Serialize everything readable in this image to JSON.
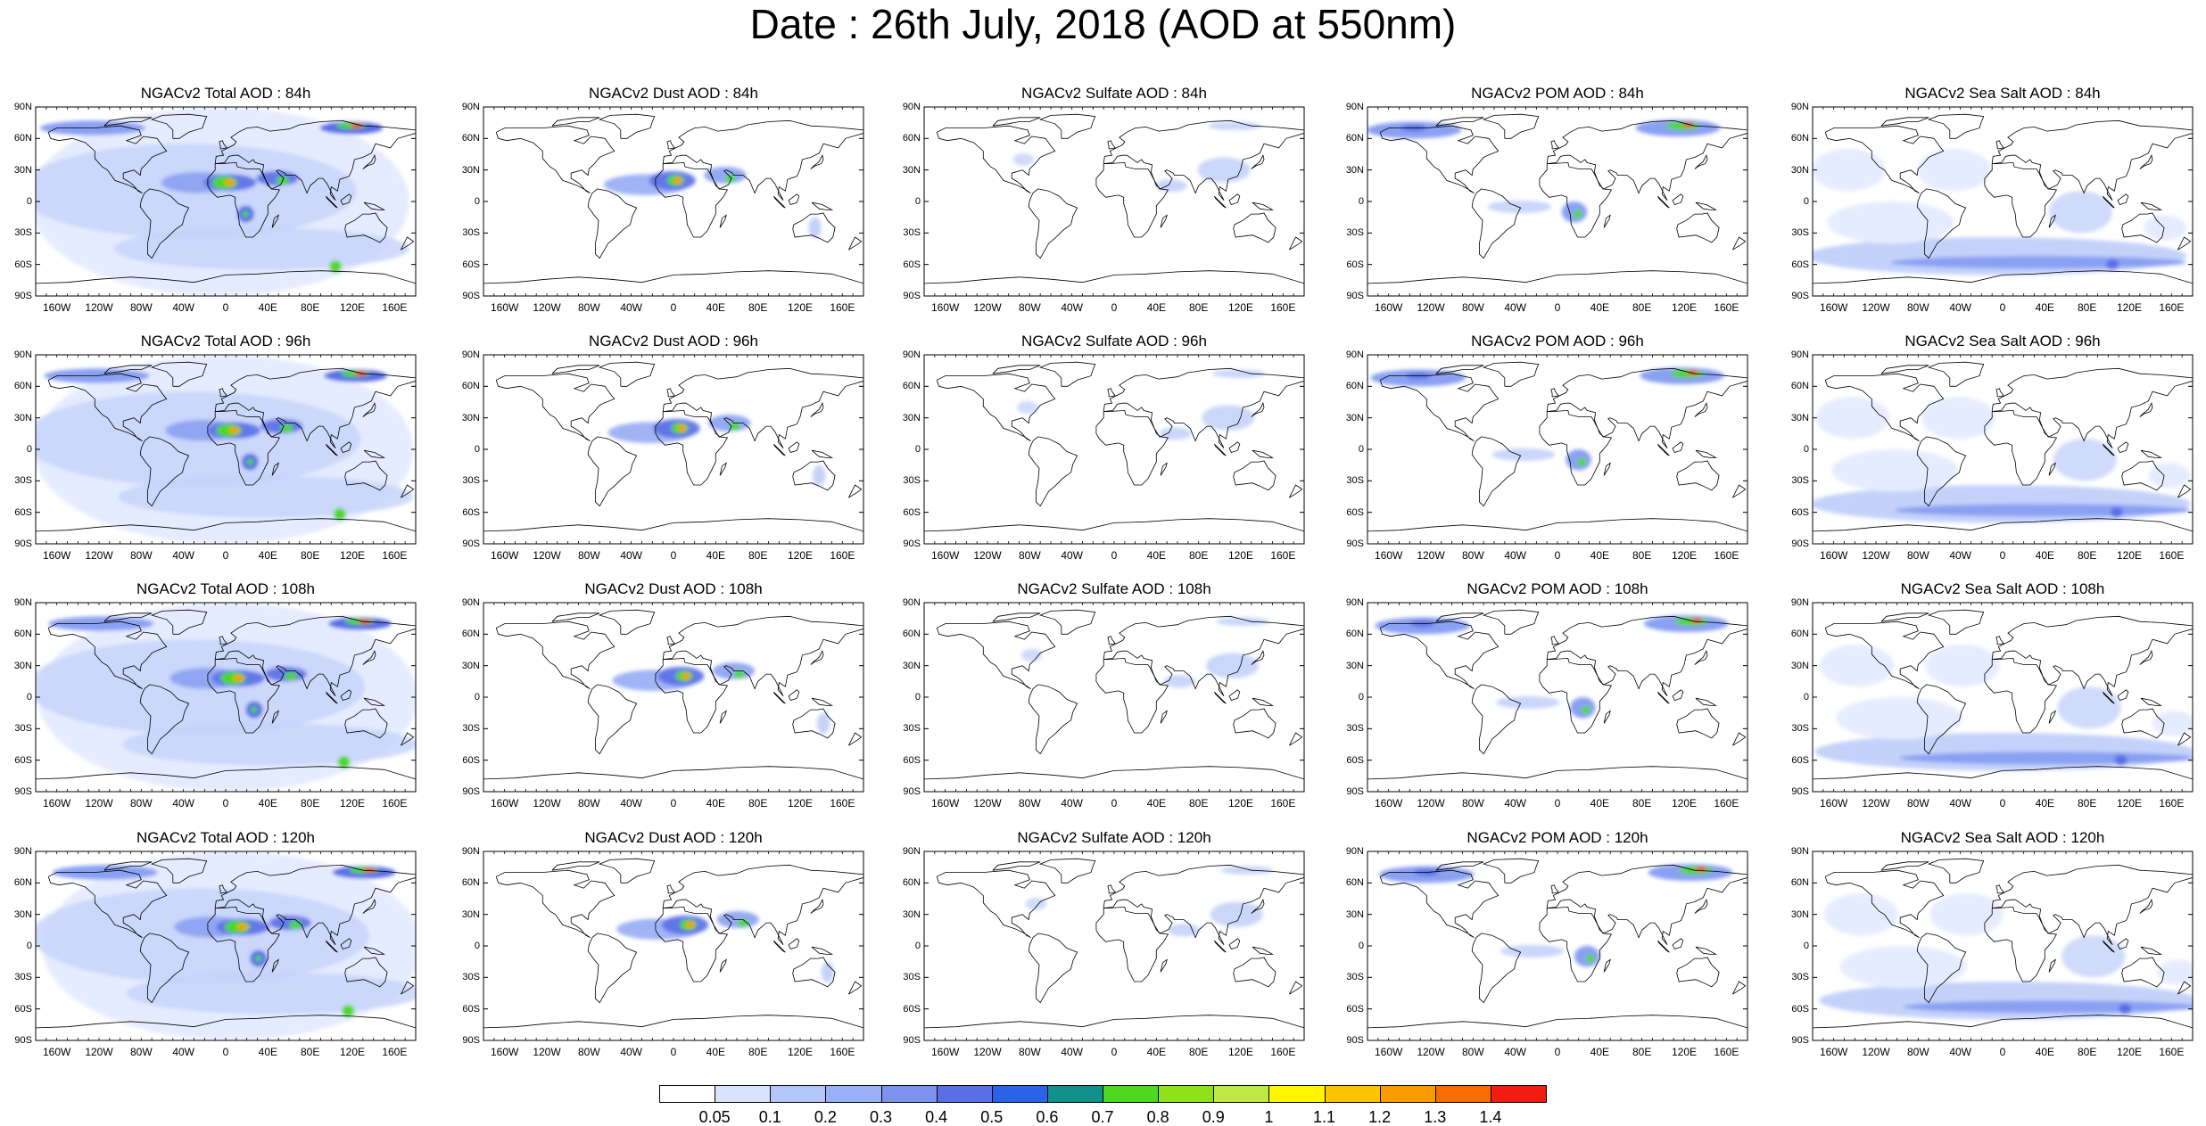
{
  "title": "Date : 26th July, 2018 (AOD at 550nm)",
  "panel_titles": [
    [
      "NGACv2 Total AOD : 84h",
      "NGACv2 Dust AOD : 84h",
      "NGACv2 Sulfate AOD : 84h",
      "NGACv2 POM AOD : 84h",
      "NGACv2 Sea Salt AOD : 84h"
    ],
    [
      "NGACv2 Total AOD : 96h",
      "NGACv2 Dust AOD : 96h",
      "NGACv2 Sulfate AOD : 96h",
      "NGACv2 POM AOD : 96h",
      "NGACv2 Sea Salt AOD : 96h"
    ],
    [
      "NGACv2 Total AOD : 108h",
      "NGACv2 Dust AOD : 108h",
      "NGACv2 Sulfate AOD : 108h",
      "NGACv2 POM AOD : 108h",
      "NGACv2 Sea Salt AOD : 108h"
    ],
    [
      "NGACv2 Total AOD : 120h",
      "NGACv2 Dust AOD : 120h",
      "NGACv2 Sulfate AOD : 120h",
      "NGACv2 POM AOD : 120h",
      "NGACv2 Sea Salt  AOD : 120h"
    ]
  ],
  "lat_labels": [
    "90N",
    "60N",
    "30N",
    "0",
    "30S",
    "60S",
    "90S"
  ],
  "lon_labels": [
    "160W",
    "120W",
    "80W",
    "40W",
    "0",
    "40E",
    "80E",
    "120E",
    "160E"
  ],
  "colorbar": {
    "labels": [
      "0.05",
      "0.1",
      "0.2",
      "0.3",
      "0.4",
      "0.5",
      "0.6",
      "0.7",
      "0.8",
      "0.9",
      "1",
      "1.1",
      "1.2",
      "1.3",
      "1.4"
    ],
    "colors": [
      "#ffffff",
      "#d7e3ff",
      "#b3c6fb",
      "#98b0f7",
      "#7d93ef",
      "#5a6ee6",
      "#2a62e8",
      "#11908c",
      "#4ed822",
      "#8fe11b",
      "#bee945",
      "#fff600",
      "#fbc300",
      "#f89b00",
      "#f66c00",
      "#f11c12"
    ]
  },
  "colors": {
    "ocean_low": "#e6ecff",
    "ocean_mid": "#c4d2fa",
    "aerosol_mid": "#8aa0f2",
    "aerosol_high": "#5a6ee6",
    "dust_core": "#4ed822",
    "dust_peak": "#f89b00",
    "smoke_peak": "#f11c12",
    "coast": "#000000"
  },
  "map_data": {
    "projection": "cylindrical-equidistant",
    "extent": {
      "lon": [
        -180,
        180
      ],
      "lat": [
        -90,
        90
      ]
    },
    "layout": {
      "rows": 4,
      "cols": 5
    }
  }
}
